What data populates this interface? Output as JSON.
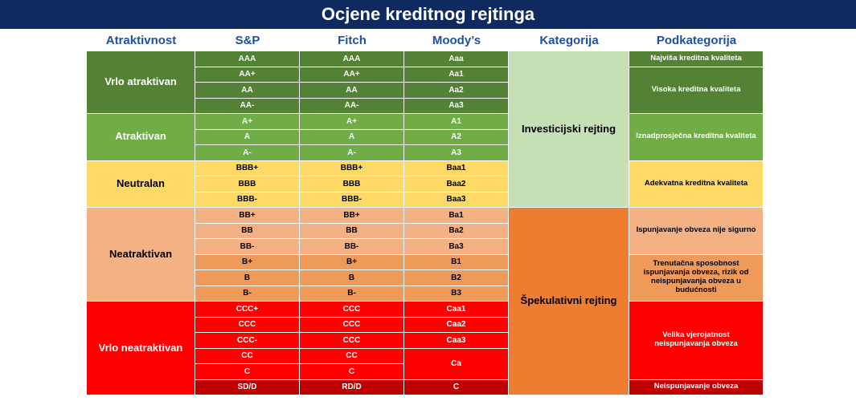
{
  "title": "Ocjene kreditnog rejtinga",
  "headers": {
    "atraktivnost": "Atraktivnost",
    "sp": "S&P",
    "fitch": "Fitch",
    "moodys": "Moody’s",
    "kategorija": "Kategorija",
    "podkategorija": "Podkategorija"
  },
  "colors": {
    "header_bg": "#0e2a61",
    "header_text": "#1f4fa3",
    "very_attractive": "#548235",
    "attractive": "#70ad47",
    "neutral": "#ffd966",
    "unattractive_light": "#f4b183",
    "unattractive_mid": "#f09a5a",
    "very_unattractive": "#ff0000",
    "default_row": "#c00000",
    "investment_grade": "#c5e0b4",
    "speculative_grade": "#ed7d31"
  },
  "attractiveness": [
    {
      "label": "Vrlo atraktivan"
    },
    {
      "label": "Atraktivan"
    },
    {
      "label": "Neutralan"
    },
    {
      "label": "Neatraktivan"
    },
    {
      "label": "Vrlo neatraktivan"
    }
  ],
  "rows": [
    {
      "sp": "AAA",
      "fitch": "AAA",
      "moodys": "Aaa"
    },
    {
      "sp": "AA+",
      "fitch": "AA+",
      "moodys": "Aa1"
    },
    {
      "sp": "AA",
      "fitch": "AA",
      "moodys": "Aa2"
    },
    {
      "sp": "AA-",
      "fitch": "AA-",
      "moodys": "Aa3"
    },
    {
      "sp": "A+",
      "fitch": "A+",
      "moodys": "A1"
    },
    {
      "sp": "A",
      "fitch": "A",
      "moodys": "A2"
    },
    {
      "sp": "A-",
      "fitch": "A-",
      "moodys": "A3"
    },
    {
      "sp": "BBB+",
      "fitch": "BBB+",
      "moodys": "Baa1"
    },
    {
      "sp": "BBB",
      "fitch": "BBB",
      "moodys": "Baa2"
    },
    {
      "sp": "BBB-",
      "fitch": "BBB-",
      "moodys": "Baa3"
    },
    {
      "sp": "BB+",
      "fitch": "BB+",
      "moodys": "Ba1"
    },
    {
      "sp": "BB",
      "fitch": "BB",
      "moodys": "Ba2"
    },
    {
      "sp": "BB-",
      "fitch": "BB-",
      "moodys": "Ba3"
    },
    {
      "sp": "B+",
      "fitch": "B+",
      "moodys": "B1"
    },
    {
      "sp": "B",
      "fitch": "B",
      "moodys": "B2"
    },
    {
      "sp": "B-",
      "fitch": "B-",
      "moodys": "B3"
    },
    {
      "sp": "CCC+",
      "fitch": "CCC",
      "moodys": "Caa1"
    },
    {
      "sp": "CCC",
      "fitch": "CCC",
      "moodys": "Caa2"
    },
    {
      "sp": "CCC-",
      "fitch": "CCC",
      "moodys": "Caa3"
    },
    {
      "sp": "CC",
      "fitch": "CC",
      "moodys": "Ca"
    },
    {
      "sp": "C",
      "fitch": "C",
      "moodys": ""
    },
    {
      "sp": "SD/D",
      "fitch": "RD/D",
      "moodys": "C"
    }
  ],
  "categories": [
    {
      "label": "Investicijski rejting"
    },
    {
      "label": "Špekulativni rejting"
    }
  ],
  "subcategories": [
    {
      "label": "Najviša kreditna kvaliteta"
    },
    {
      "label": "Visoka kreditna kvaliteta"
    },
    {
      "label": "Iznadprosječna kreditna kvaliteta"
    },
    {
      "label": "Adekvatna kreditna kvaliteta"
    },
    {
      "label": "Ispunjavanje obveza nije sigurno"
    },
    {
      "label": "Trenutačna sposobnost ispunjavanja obveza, rizik od neispunjavanja obveza u budućnosti"
    },
    {
      "label": "Velika vjerojatnost neispunjavanja obveza"
    },
    {
      "label": "Neispunjavanje obveza"
    }
  ]
}
